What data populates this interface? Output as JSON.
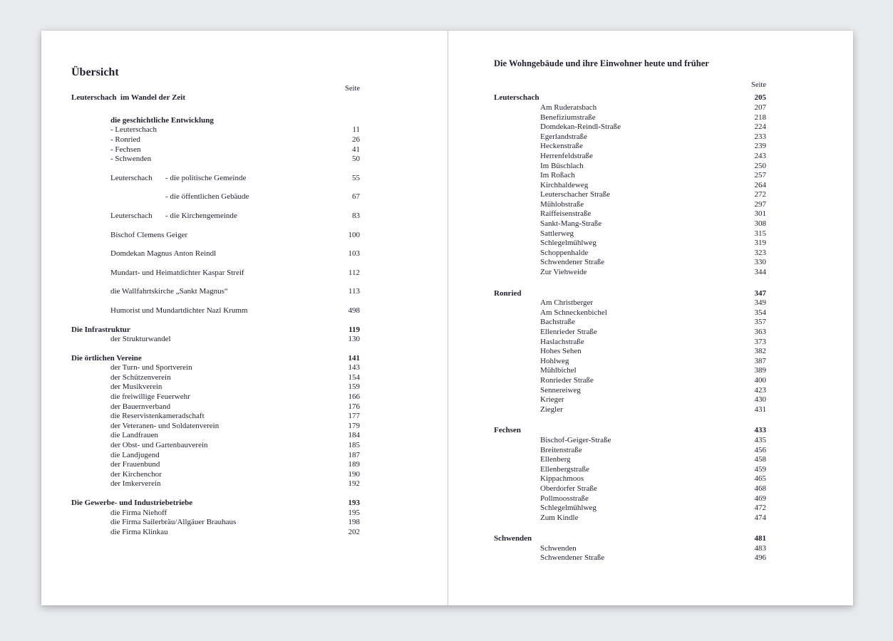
{
  "colors": {
    "backdrop": "#e9ebee",
    "page_background": "#ffffff",
    "text": "#1f1f2e",
    "divider": "#c6c8cb"
  },
  "left_page": {
    "title": "Übersicht",
    "column_header": "Seite",
    "section_heading": "Leuterschach  im Wandel der Zeit",
    "blocks": [
      [
        {
          "label": "die geschichtliche Entwicklung",
          "bold": true,
          "indent": 1
        },
        {
          "label": "- Leuterschach",
          "page": "11",
          "indent": 1
        },
        {
          "label": "- Ronried",
          "page": "26",
          "indent": 1
        },
        {
          "label": "- Fechsen",
          "page": "41",
          "indent": 1
        },
        {
          "label": "- Schwenden",
          "page": "50",
          "indent": 1
        }
      ],
      [
        {
          "label": "Leuterschach",
          "label2": "- die politische Gemeinde",
          "page": "55",
          "indent": 1
        }
      ],
      [
        {
          "label": "",
          "label2": "- die öffentlichen Gebäude",
          "page": "67",
          "indent": 1
        }
      ],
      [
        {
          "label": "Leuterschach",
          "label2": "- die Kirchengemeinde",
          "page": "83",
          "indent": 1
        }
      ],
      [
        {
          "label": "Bischof Clemens Geiger",
          "page": "100",
          "indent": 1
        }
      ],
      [
        {
          "label": "Domdekan Magnus Anton Reindl",
          "page": "103",
          "indent": 1
        }
      ],
      [
        {
          "label": "Mundart- und Heimatdichter Kaspar Streif",
          "page": "112",
          "indent": 1
        }
      ],
      [
        {
          "label": "die Wallfahrtskirche „Sankt Magnus“",
          "page": "113",
          "indent": 1
        }
      ],
      [
        {
          "label": "Humorist und Mundartdichter Nazl Krumm",
          "page": "498",
          "indent": 1
        }
      ],
      [
        {
          "label": "Die Infrastruktur",
          "page": "119",
          "bold": true,
          "indent": 0
        },
        {
          "label": "der Strukturwandel",
          "page": "130",
          "indent": 1
        }
      ],
      [
        {
          "label": "Die örtlichen Vereine",
          "page": "141",
          "bold": true,
          "indent": 0
        },
        {
          "label": "der Turn- und Sportverein",
          "page": "143",
          "indent": 1
        },
        {
          "label": "der Schützenverein",
          "page": "154",
          "indent": 1
        },
        {
          "label": "der Musikverein",
          "page": "159",
          "indent": 1
        },
        {
          "label": "die freiwillige Feuerwehr",
          "page": "166",
          "indent": 1
        },
        {
          "label": "der Bauernverband",
          "page": "176",
          "indent": 1
        },
        {
          "label": "die Reservistenkameradschaft",
          "page": "177",
          "indent": 1
        },
        {
          "label": "der Veteranen- und Soldatenverein",
          "page": "179",
          "indent": 1
        },
        {
          "label": "die Landfrauen",
          "page": "184",
          "indent": 1
        },
        {
          "label": "der Obst- und Gartenbauverein",
          "page": "185",
          "indent": 1
        },
        {
          "label": "die Landjugend",
          "page": "187",
          "indent": 1
        },
        {
          "label": "der Frauenbund",
          "page": "189",
          "indent": 1
        },
        {
          "label": "der Kirchenchor",
          "page": "190",
          "indent": 1
        },
        {
          "label": "der Imkerverein",
          "page": "192",
          "indent": 1
        }
      ],
      [
        {
          "label": "Die Gewerbe- und Industriebetriebe",
          "page": "193",
          "bold": true,
          "indent": 0
        },
        {
          "label": "die Firma Niehoff",
          "page": "195",
          "indent": 1
        },
        {
          "label": "die Firma Sailerbräu/Allgäuer Brauhaus",
          "page": "198",
          "indent": 1
        },
        {
          "label": "die Firma Klinkau",
          "page": "202",
          "indent": 1
        }
      ]
    ]
  },
  "right_page": {
    "title": "Die Wohngebäude und ihre Einwohner heute und früher",
    "column_header": "Seite",
    "groups": [
      {
        "heading": "Leuterschach",
        "page": "205",
        "items": [
          {
            "label": "Am Ruderatsbach",
            "page": "207"
          },
          {
            "label": "Benefiziumstraße",
            "page": "218"
          },
          {
            "label": "Domdekan-Reindl-Straße",
            "page": "224"
          },
          {
            "label": "Egerlandstraße",
            "page": "233"
          },
          {
            "label": "Heckenstraße",
            "page": "239"
          },
          {
            "label": "Herrenfeldstraße",
            "page": "243"
          },
          {
            "label": "Im Büschlach",
            "page": "250"
          },
          {
            "label": "Im Roßach",
            "page": "257"
          },
          {
            "label": "Kirchhaldeweg",
            "page": "264"
          },
          {
            "label": "Leuterschacher Straße",
            "page": "272"
          },
          {
            "label": "Mühlobstraße",
            "page": "297"
          },
          {
            "label": "Raiffeisenstraße",
            "page": "301"
          },
          {
            "label": "Sankt-Mang-Straße",
            "page": "308"
          },
          {
            "label": "Sattlerweg",
            "page": "315"
          },
          {
            "label": "Schlegelmühlweg",
            "page": "319"
          },
          {
            "label": "Schoppenhalde",
            "page": "323"
          },
          {
            "label": "Schwendener Straße",
            "page": "330"
          },
          {
            "label": "Zur Viehweide",
            "page": "344"
          }
        ]
      },
      {
        "heading": "Ronried",
        "page": "347",
        "items": [
          {
            "label": "Am Christberger",
            "page": "349"
          },
          {
            "label": "Am Schneckenbichel",
            "page": "354"
          },
          {
            "label": "Bachstraße",
            "page": "357"
          },
          {
            "label": "Ellenrieder Straße",
            "page": "363"
          },
          {
            "label": "Haslachstraße",
            "page": "373"
          },
          {
            "label": "Hohes Sehen",
            "page": "382"
          },
          {
            "label": "Hohlweg",
            "page": "387"
          },
          {
            "label": "Mühlbichel",
            "page": "389"
          },
          {
            "label": "Ronrieder Straße",
            "page": "400"
          },
          {
            "label": "Sennereiweg",
            "page": "423"
          },
          {
            "label": "Krieger",
            "page": "430"
          },
          {
            "label": "Ziegler",
            "page": "431"
          }
        ]
      },
      {
        "heading": "Fechsen",
        "page": "433",
        "items": [
          {
            "label": "Bischof-Geiger-Straße",
            "page": "435"
          },
          {
            "label": "Breitenstraße",
            "page": "456"
          },
          {
            "label": "Ellenberg",
            "page": "458"
          },
          {
            "label": "Ellenbergstraße",
            "page": "459"
          },
          {
            "label": "Kippachmoos",
            "page": "465"
          },
          {
            "label": "Oberdorfer Straße",
            "page": "468"
          },
          {
            "label": "Pollmoosstraße",
            "page": "469"
          },
          {
            "label": "Schlegelmühlweg",
            "page": "472"
          },
          {
            "label": "Zum Kindle",
            "page": "474"
          }
        ]
      },
      {
        "heading": "Schwenden",
        "page": "481",
        "items": [
          {
            "label": "Schwenden",
            "page": "483"
          },
          {
            "label": "Schwendener Straße",
            "page": "496"
          }
        ]
      }
    ]
  }
}
